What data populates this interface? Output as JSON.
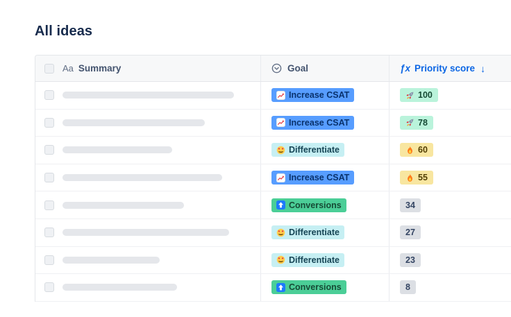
{
  "page": {
    "title": "All ideas"
  },
  "table": {
    "columns": [
      {
        "id": "summary",
        "label": "Summary",
        "icon": "text-type-icon",
        "icon_glyph": "Aa"
      },
      {
        "id": "goal",
        "label": "Goal",
        "icon": "chevron-circle-icon"
      },
      {
        "id": "priority",
        "label": "Priority score",
        "icon": "formula-icon",
        "icon_glyph": "ƒx",
        "sort": "desc",
        "sort_glyph": "↓",
        "accent": "#0C66E4"
      }
    ],
    "goals": {
      "increase-csat": {
        "label": "Increase CSAT",
        "bg": "#579DFF",
        "text": "#09326C",
        "icon": "chart-up-icon"
      },
      "differentiate": {
        "label": "Differentiate",
        "bg": "#C6EFF3",
        "text": "#164555",
        "icon": "star-struck-icon"
      },
      "conversions": {
        "label": "Conversions",
        "bg": "#4BCE97",
        "text": "#164B35",
        "icon": "up-arrow-icon"
      }
    },
    "score_tiers": {
      "high": {
        "bg": "#BAF3DB",
        "text": "#164B35",
        "icon": "rocket-icon"
      },
      "medium": {
        "bg": "#F8E6A0",
        "text": "#533F04",
        "icon": "fire-icon"
      },
      "low": {
        "bg": "#DCDFE4",
        "text": "#344563",
        "icon": null
      }
    },
    "rows": [
      {
        "summary_bar_width": 247,
        "goal": "increase-csat",
        "score": 100,
        "tier": "high"
      },
      {
        "summary_bar_width": 205,
        "goal": "increase-csat",
        "score": 78,
        "tier": "high"
      },
      {
        "summary_bar_width": 158,
        "goal": "differentiate",
        "score": 60,
        "tier": "medium"
      },
      {
        "summary_bar_width": 230,
        "goal": "increase-csat",
        "score": 55,
        "tier": "medium"
      },
      {
        "summary_bar_width": 175,
        "goal": "conversions",
        "score": 34,
        "tier": "low"
      },
      {
        "summary_bar_width": 240,
        "goal": "differentiate",
        "score": 27,
        "tier": "low"
      },
      {
        "summary_bar_width": 140,
        "goal": "differentiate",
        "score": 23,
        "tier": "low"
      },
      {
        "summary_bar_width": 165,
        "goal": "conversions",
        "score": 8,
        "tier": "low"
      }
    ]
  }
}
